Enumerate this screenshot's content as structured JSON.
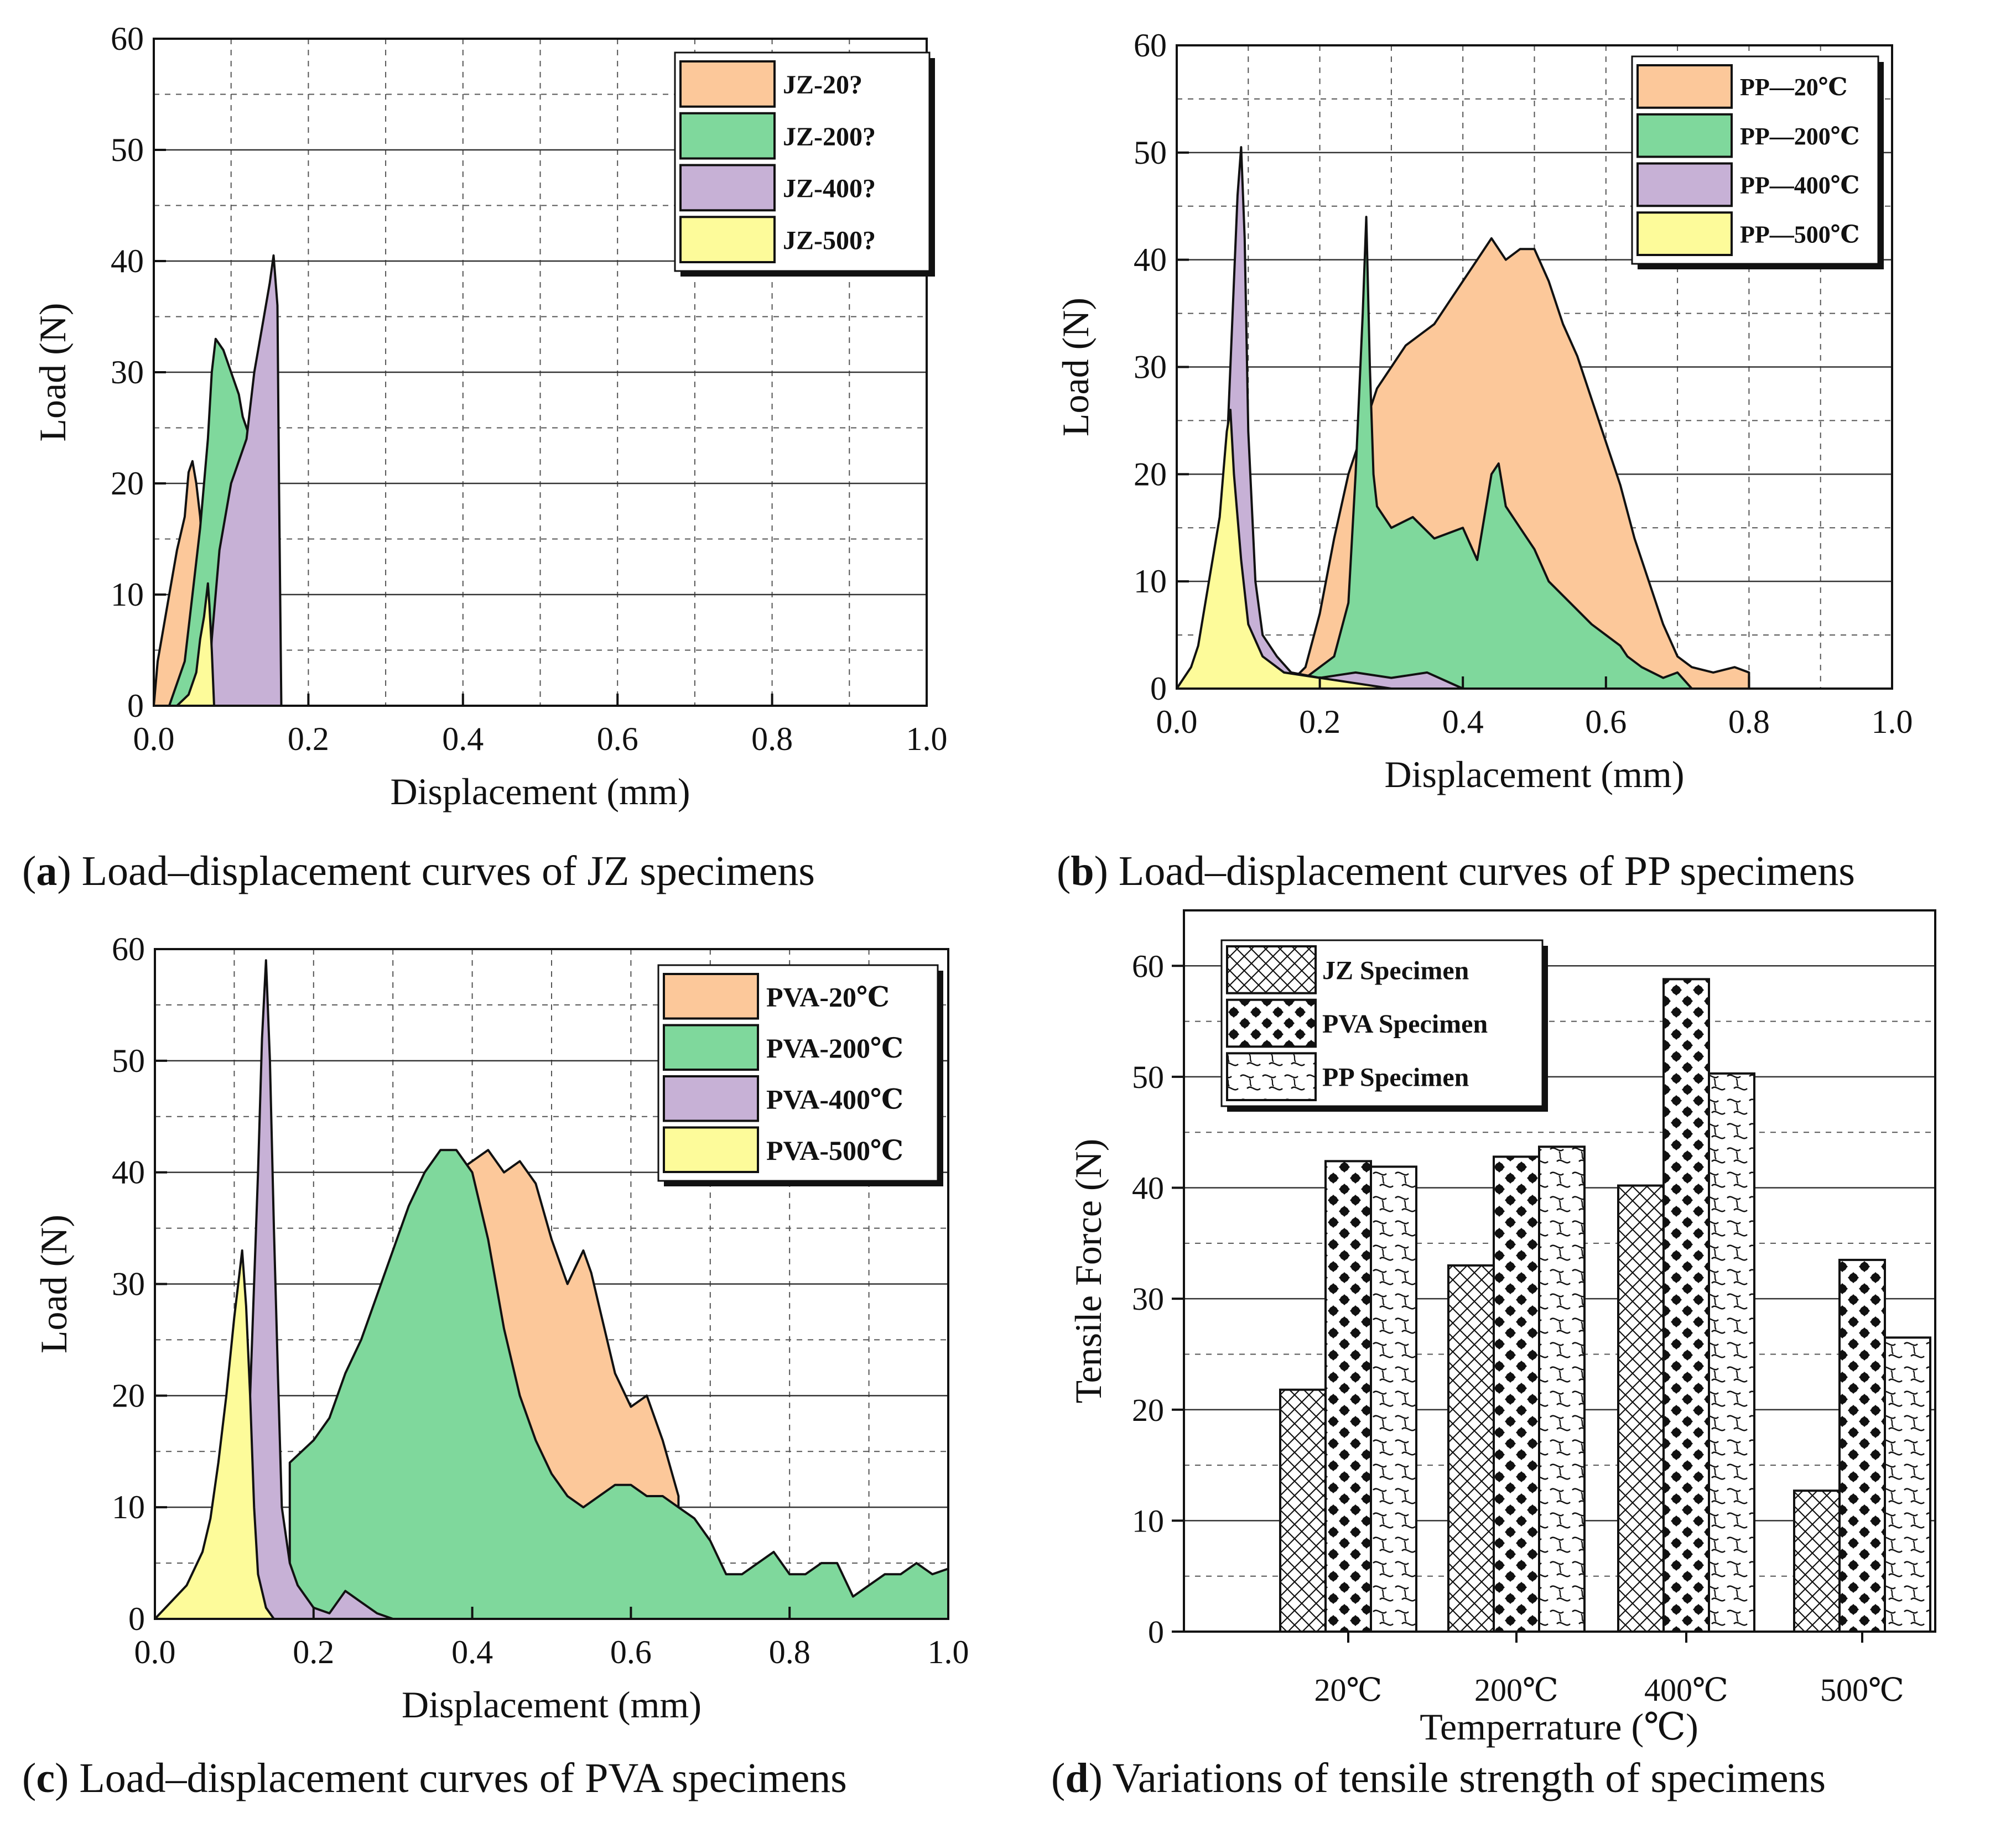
{
  "colors": {
    "orange": "#FCC89A",
    "green": "#7FD89C",
    "purple": "#C7B1D6",
    "yellow": "#FDFB9A",
    "stroke": "#111111"
  },
  "chart_data": [
    {
      "id": "a",
      "type": "area",
      "caption_letter": "a",
      "caption_text": ") Load–displacement curves of JZ specimens",
      "caption_paren": "(",
      "xlabel": "Displacement (mm)",
      "ylabel": "Load (N)",
      "xlim": [
        0,
        1.0
      ],
      "ylim": [
        0,
        60
      ],
      "xticks": [
        "0.0",
        "0.2",
        "0.4",
        "0.6",
        "0.8",
        "1.0"
      ],
      "yticks": [
        "0",
        "10",
        "20",
        "30",
        "40",
        "50",
        "60"
      ],
      "legend_position": "top-right",
      "series": [
        {
          "name": "JZ-20?",
          "color_key": "orange",
          "x": [
            0,
            0.005,
            0.01,
            0.02,
            0.03,
            0.04,
            0.045,
            0.05,
            0.055,
            0.06,
            0.065,
            0.075,
            0.08
          ],
          "y": [
            0,
            4,
            6,
            10,
            14,
            17,
            21,
            22,
            20,
            17,
            12,
            5,
            0
          ]
        },
        {
          "name": "JZ-200?",
          "color_key": "green",
          "x": [
            0.02,
            0.04,
            0.05,
            0.06,
            0.07,
            0.075,
            0.08,
            0.09,
            0.1,
            0.11,
            0.115,
            0.12,
            0.125,
            0.13,
            0.12,
            0.1,
            0.085,
            0.075,
            0.07
          ],
          "y": [
            0,
            4,
            10,
            16,
            24,
            30,
            33,
            32,
            30,
            28,
            26,
            25,
            24,
            22,
            15,
            8,
            4,
            1,
            0
          ]
        },
        {
          "name": "JZ-400?",
          "color_key": "purple",
          "x": [
            0.07,
            0.075,
            0.085,
            0.1,
            0.12,
            0.13,
            0.14,
            0.15,
            0.155,
            0.16,
            0.162,
            0.165
          ],
          "y": [
            0,
            6,
            14,
            20,
            24,
            30,
            34,
            38,
            40.5,
            36,
            20,
            0
          ]
        },
        {
          "name": "JZ-500?",
          "color_key": "yellow",
          "x": [
            0.03,
            0.045,
            0.055,
            0.06,
            0.065,
            0.07,
            0.072,
            0.075,
            0.078
          ],
          "y": [
            0,
            1,
            3,
            6,
            8,
            11,
            9,
            5,
            0
          ]
        }
      ]
    },
    {
      "id": "b",
      "type": "area",
      "caption_letter": "b",
      "caption_text": ") Load–displacement curves of PP specimens",
      "caption_paren": "(",
      "xlabel": "Displacement (mm)",
      "ylabel": "Load (N)",
      "xlim": [
        0,
        1.0
      ],
      "ylim": [
        0,
        60
      ],
      "xticks": [
        "0.0",
        "0.2",
        "0.4",
        "0.6",
        "0.8",
        "1.0"
      ],
      "yticks": [
        "0",
        "10",
        "20",
        "30",
        "40",
        "50",
        "60"
      ],
      "legend_position": "top-right",
      "series": [
        {
          "name": "PP—20℃",
          "color_key": "orange",
          "x": [
            0.15,
            0.18,
            0.2,
            0.22,
            0.24,
            0.26,
            0.28,
            0.3,
            0.32,
            0.34,
            0.36,
            0.38,
            0.4,
            0.42,
            0.44,
            0.46,
            0.48,
            0.5,
            0.52,
            0.54,
            0.56,
            0.58,
            0.6,
            0.62,
            0.64,
            0.66,
            0.68,
            0.7,
            0.72,
            0.75,
            0.78,
            0.8,
            0.8
          ],
          "y": [
            0,
            2,
            7,
            14,
            20,
            24,
            28,
            30,
            32,
            33,
            34,
            36,
            38,
            40,
            42,
            40,
            41,
            41,
            38,
            34,
            31,
            27,
            23,
            19,
            14,
            10,
            6,
            3,
            2,
            1.5,
            2,
            1.5,
            0
          ]
        },
        {
          "name": "PP—200℃",
          "color_key": "green",
          "x": [
            0.16,
            0.2,
            0.22,
            0.24,
            0.25,
            0.26,
            0.265,
            0.27,
            0.275,
            0.28,
            0.3,
            0.33,
            0.36,
            0.4,
            0.42,
            0.43,
            0.44,
            0.45,
            0.46,
            0.48,
            0.5,
            0.52,
            0.55,
            0.58,
            0.6,
            0.62,
            0.63,
            0.65,
            0.68,
            0.7,
            0.72
          ],
          "y": [
            0,
            2,
            3,
            8,
            20,
            35,
            44,
            30,
            20,
            17,
            15,
            16,
            14,
            15,
            12,
            16,
            20,
            21,
            17,
            15,
            13,
            10,
            8,
            6,
            5,
            4,
            3,
            2,
            1,
            1.5,
            0
          ]
        },
        {
          "name": "PP—400℃",
          "color_key": "purple",
          "x": [
            0.04,
            0.06,
            0.07,
            0.08,
            0.085,
            0.09,
            0.095,
            0.1,
            0.11,
            0.12,
            0.14,
            0.16,
            0.2,
            0.25,
            0.3,
            0.35,
            0.4
          ],
          "y": [
            0,
            10,
            22,
            38,
            46,
            50.5,
            42,
            24,
            10,
            5,
            3,
            1.5,
            1,
            1.5,
            1,
            1.5,
            0
          ]
        },
        {
          "name": "PP—500℃",
          "color_key": "yellow",
          "x": [
            0.0,
            0.01,
            0.02,
            0.03,
            0.04,
            0.05,
            0.06,
            0.065,
            0.07,
            0.075,
            0.08,
            0.09,
            0.1,
            0.12,
            0.15,
            0.2,
            0.25,
            0.3
          ],
          "y": [
            0,
            1,
            2,
            4,
            8,
            12,
            16,
            20,
            24,
            26,
            20,
            12,
            6,
            3,
            1.5,
            1,
            0.5,
            0
          ]
        }
      ]
    },
    {
      "id": "c",
      "type": "area",
      "caption_letter": "c",
      "caption_text": ") Load–displacement curves of PVA specimens",
      "caption_paren": "(",
      "xlabel": "Displacement (mm)",
      "ylabel": "Load (N)",
      "xlim": [
        0,
        1.0
      ],
      "ylim": [
        0,
        60
      ],
      "xticks": [
        "0.0",
        "0.2",
        "0.4",
        "0.6",
        "0.8",
        "1.0"
      ],
      "yticks": [
        "0",
        "10",
        "20",
        "30",
        "40",
        "50",
        "60"
      ],
      "legend_position": "top-right",
      "series": [
        {
          "name": "PVA-20℃",
          "color_key": "orange",
          "x": [
            0.38,
            0.4,
            0.42,
            0.44,
            0.46,
            0.48,
            0.5,
            0.52,
            0.54,
            0.55,
            0.56,
            0.58,
            0.6,
            0.62,
            0.64,
            0.66
          ],
          "y": [
            40,
            41,
            42,
            40,
            41,
            39,
            34,
            30,
            33,
            31,
            28,
            22,
            19,
            20,
            16,
            11
          ]
        },
        {
          "name": "PVA-200℃",
          "color_key": "green",
          "x": [
            0.17,
            0.2,
            0.22,
            0.24,
            0.26,
            0.28,
            0.3,
            0.32,
            0.34,
            0.36,
            0.38,
            0.4,
            0.42,
            0.44,
            0.46,
            0.48,
            0.5,
            0.52,
            0.54,
            0.56,
            0.58,
            0.6,
            0.62,
            0.64,
            0.66,
            0.68,
            0.7,
            0.72,
            0.74,
            0.76,
            0.78,
            0.8,
            0.82,
            0.84,
            0.86,
            0.88,
            0.9,
            0.92,
            0.94,
            0.96,
            0.98,
            1.0
          ],
          "y": [
            14,
            16,
            18,
            22,
            25,
            29,
            33,
            37,
            40,
            42,
            42,
            40,
            34,
            26,
            20,
            16,
            13,
            11,
            10,
            11,
            12,
            12,
            11,
            11,
            10,
            9,
            7,
            4,
            4,
            5,
            6,
            4,
            4,
            5,
            5,
            2,
            3,
            4,
            4,
            5,
            4,
            4.5
          ]
        },
        {
          "name": "PVA-400℃",
          "color_key": "purple",
          "x": [
            0.1,
            0.12,
            0.13,
            0.135,
            0.14,
            0.145,
            0.15,
            0.155,
            0.16,
            0.17,
            0.18,
            0.2,
            0.22,
            0.24,
            0.26,
            0.28,
            0.3
          ],
          "y": [
            0,
            20,
            40,
            52,
            59,
            50,
            35,
            22,
            10,
            5,
            3,
            1,
            0.5,
            2.5,
            1.5,
            0.5,
            0
          ]
        },
        {
          "name": "PVA-500℃",
          "color_key": "yellow",
          "x": [
            0.0,
            0.02,
            0.04,
            0.06,
            0.07,
            0.08,
            0.09,
            0.1,
            0.105,
            0.11,
            0.115,
            0.12,
            0.125,
            0.13,
            0.14,
            0.15
          ],
          "y": [
            0,
            1.5,
            3,
            6,
            9,
            14,
            20,
            27,
            30,
            33,
            28,
            20,
            10,
            4,
            1,
            0
          ]
        }
      ]
    },
    {
      "id": "d",
      "type": "bar",
      "caption_letter": "d",
      "caption_text": ") Variations of tensile strength of specimens",
      "caption_paren": "(",
      "xlabel": "Temperrature (℃)",
      "ylabel": "Tensile Force (N)",
      "ylim": [
        0,
        65
      ],
      "yticks": [
        "0",
        "10",
        "20",
        "30",
        "40",
        "50",
        "60"
      ],
      "categories": [
        "20℃",
        "200℃",
        "400℃",
        "500℃"
      ],
      "legend_position": "top-left",
      "series": [
        {
          "name": "JZ Specimen",
          "pattern": "crosshatch",
          "values": [
            21.8,
            33,
            40.2,
            12.7
          ]
        },
        {
          "name": "PVA Specimen",
          "pattern": "dots",
          "values": [
            42.4,
            42.8,
            58.8,
            33.5
          ]
        },
        {
          "name": "PP Specimen",
          "pattern": "wave",
          "values": [
            41.9,
            43.7,
            50.3,
            26.5
          ]
        }
      ]
    }
  ]
}
